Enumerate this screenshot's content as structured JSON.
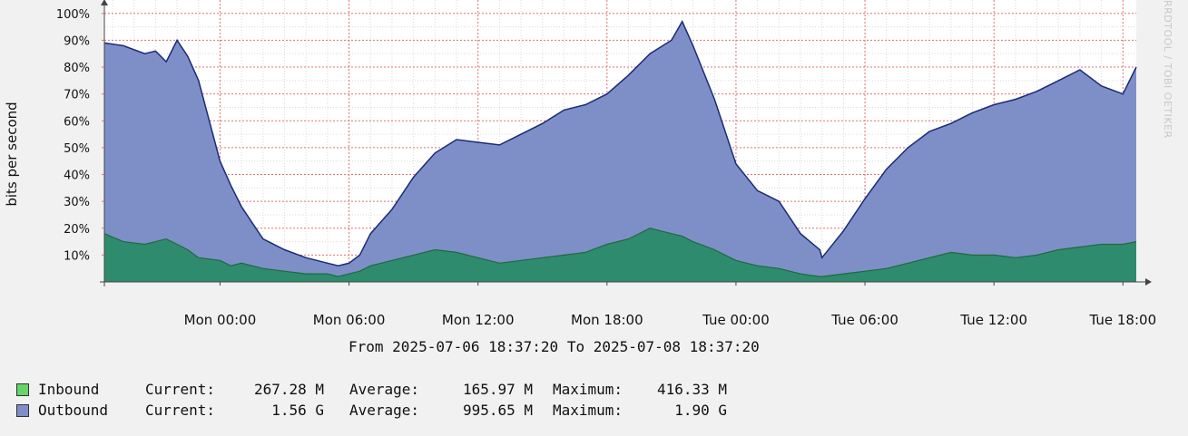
{
  "chart_data": {
    "type": "area",
    "title": "",
    "ylabel": "bits per second",
    "xlabel": "",
    "ylim": [
      0,
      105
    ],
    "xlim_hours": [
      -5.38,
      42.62
    ],
    "y_ticks": [
      "10%",
      "20%",
      "30%",
      "40%",
      "50%",
      "60%",
      "70%",
      "80%",
      "90%",
      "100%"
    ],
    "y_tick_values": [
      10,
      20,
      30,
      40,
      50,
      60,
      70,
      80,
      90,
      100
    ],
    "x_ticks": [
      "Mon 00:00",
      "Mon 06:00",
      "Mon 12:00",
      "Mon 18:00",
      "Tue 00:00",
      "Tue 06:00",
      "Tue 12:00",
      "Tue 18:00"
    ],
    "x_tick_hours": [
      0,
      6,
      12,
      18,
      24,
      30,
      36,
      42
    ],
    "grid": true,
    "x": [
      -5.38,
      -4.5,
      -3.5,
      -3,
      -2.5,
      -2,
      -1.5,
      -1,
      0,
      0.5,
      1,
      2,
      3,
      4,
      5,
      5.5,
      6,
      6.5,
      7,
      8,
      9,
      10,
      11,
      12,
      13,
      14,
      15,
      16,
      17,
      18,
      19,
      20,
      21,
      21.5,
      22,
      23,
      24,
      25,
      26,
      27,
      27.9,
      28,
      29,
      30,
      31,
      32,
      33,
      34,
      35,
      36,
      37,
      38,
      39,
      40,
      41,
      42,
      42.62
    ],
    "series": [
      {
        "name": "Inbound",
        "color": "#2e8b6e",
        "values": [
          18,
          15,
          14,
          15,
          16,
          14,
          12,
          9,
          8,
          6,
          7,
          5,
          4,
          3,
          3,
          2,
          3,
          4,
          6,
          8,
          10,
          12,
          11,
          9,
          7,
          8,
          9,
          10,
          11,
          14,
          16,
          20,
          18,
          17,
          15,
          12,
          8,
          6,
          5,
          3,
          2,
          2,
          3,
          4,
          5,
          7,
          9,
          11,
          10,
          10,
          9,
          10,
          12,
          13,
          14,
          14,
          15
        ]
      },
      {
        "name": "Outbound",
        "color": "#7e8fc8",
        "values": [
          89,
          88,
          85,
          86,
          82,
          90,
          84,
          75,
          45,
          36,
          28,
          16,
          12,
          9,
          7,
          6,
          7,
          10,
          18,
          27,
          39,
          48,
          53,
          52,
          51,
          55,
          59,
          64,
          66,
          70,
          77,
          85,
          90,
          97,
          88,
          68,
          44,
          34,
          30,
          18,
          12,
          9,
          19,
          31,
          42,
          50,
          56,
          59,
          63,
          66,
          68,
          71,
          75,
          79,
          73,
          70,
          80
        ]
      }
    ]
  },
  "watermark": "RRDTOOL / TOBI OETIKER",
  "range_text": "From 2025-07-06 18:37:20 To 2025-07-08 18:37:20",
  "legend": {
    "items": [
      {
        "name": "Inbound",
        "color": "#66d466",
        "current_label": "Current:",
        "current": "267.28 M",
        "average_label": "Average:",
        "average": "165.97 M",
        "maximum_label": "Maximum:",
        "maximum": "416.33 M"
      },
      {
        "name": "Outbound",
        "color": "#7e8fc8",
        "current_label": "Current:",
        "current": "1.56 G",
        "average_label": "Average:",
        "average": "995.65 M",
        "maximum_label": "Maximum:",
        "maximum": "1.90 G"
      }
    ]
  }
}
